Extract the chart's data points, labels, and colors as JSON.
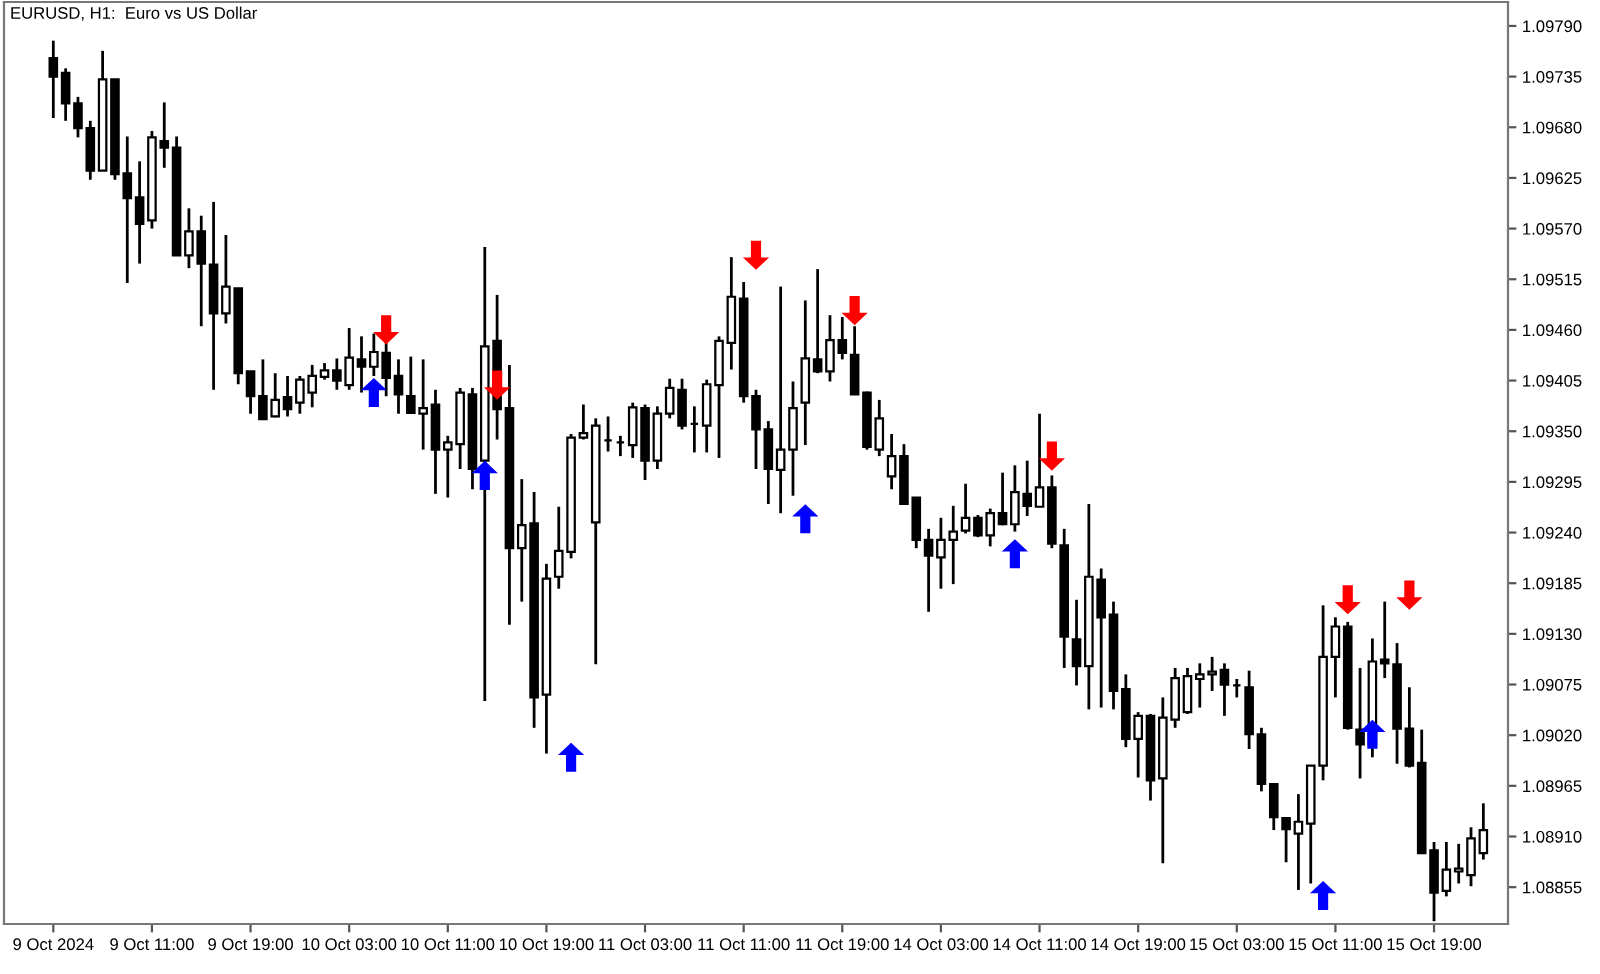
{
  "chart_data": {
    "type": "candlestick",
    "title": "EURUSD, H1:  Euro vs US Dollar",
    "categories": [
      "9 Oct 2024",
      null,
      null,
      null,
      null,
      null,
      null,
      null,
      "9 Oct 11:00",
      null,
      null,
      null,
      null,
      null,
      null,
      null,
      "9 Oct 19:00",
      null,
      null,
      null,
      null,
      null,
      null,
      null,
      "10 Oct 03:00",
      null,
      null,
      null,
      null,
      null,
      null,
      null,
      "10 Oct 11:00",
      null,
      null,
      null,
      null,
      null,
      null,
      null,
      "10 Oct 19:00",
      null,
      null,
      null,
      null,
      null,
      null,
      null,
      "11 Oct 03:00",
      null,
      null,
      null,
      null,
      null,
      null,
      null,
      "11 Oct 11:00",
      null,
      null,
      null,
      null,
      null,
      null,
      null,
      "11 Oct 19:00",
      null,
      null,
      null,
      null,
      null,
      null,
      null,
      "14 Oct 03:00",
      null,
      null,
      null,
      null,
      null,
      null,
      null,
      "14 Oct 11:00",
      null,
      null,
      null,
      null,
      null,
      null,
      null,
      "14 Oct 19:00",
      null,
      null,
      null,
      null,
      null,
      null,
      null,
      "15 Oct 03:00",
      null,
      null,
      null,
      null,
      null,
      null,
      null,
      "15 Oct 11:00",
      null,
      null,
      null,
      null,
      null,
      null,
      null,
      "15 Oct 19:00",
      null,
      null,
      null,
      null
    ],
    "ohlc": [
      [
        1.09755,
        1.09774,
        1.0969,
        1.09735
      ],
      [
        1.09739,
        1.09744,
        1.09687,
        1.09706
      ],
      [
        1.09706,
        1.09713,
        1.09669,
        1.09679
      ],
      [
        1.09679,
        1.09687,
        1.09623,
        1.09633
      ],
      [
        1.09633,
        1.09763,
        1.09633,
        1.09732
      ],
      [
        1.09732,
        1.09732,
        1.09623,
        1.09629
      ],
      [
        1.0963,
        1.0967,
        1.09511,
        1.09603
      ],
      [
        1.09604,
        1.09643,
        1.09532,
        1.09575
      ],
      [
        1.09579,
        1.09676,
        1.0957,
        1.09669
      ],
      [
        1.09665,
        1.09707,
        1.09636,
        1.09658
      ],
      [
        1.09658,
        1.0967,
        1.09541,
        1.09541
      ],
      [
        1.09541,
        1.09592,
        1.09527,
        1.09567
      ],
      [
        1.09567,
        1.09584,
        1.09464,
        1.09532
      ],
      [
        1.09531,
        1.09599,
        1.09395,
        1.09478
      ],
      [
        1.09478,
        1.09563,
        1.09467,
        1.09507
      ],
      [
        1.09505,
        1.09505,
        1.09401,
        1.09413
      ],
      [
        1.09415,
        1.09415,
        1.09369,
        1.09388
      ],
      [
        1.09388,
        1.09428,
        1.09363,
        1.09363
      ],
      [
        1.09366,
        1.09413,
        1.09365,
        1.09384
      ],
      [
        1.09387,
        1.0941,
        1.09366,
        1.09374
      ],
      [
        1.09381,
        1.0941,
        1.09369,
        1.09406
      ],
      [
        1.09392,
        1.09422,
        1.09376,
        1.0941
      ],
      [
        1.09409,
        1.09424,
        1.09406,
        1.09416
      ],
      [
        1.09416,
        1.09429,
        1.09395,
        1.09405
      ],
      [
        1.094,
        1.09462,
        1.09395,
        1.0943
      ],
      [
        1.09428,
        1.09453,
        1.09392,
        1.0942
      ],
      [
        1.0942,
        1.09456,
        1.0941,
        1.09436
      ],
      [
        1.09435,
        1.09446,
        1.09388,
        1.09408
      ],
      [
        1.0941,
        1.09428,
        1.09369,
        1.0939
      ],
      [
        1.09388,
        1.09431,
        1.09369,
        1.0937
      ],
      [
        1.09369,
        1.09428,
        1.0933,
        1.09375
      ],
      [
        1.09379,
        1.09395,
        1.09282,
        1.0933
      ],
      [
        1.0933,
        1.09345,
        1.09278,
        1.09338
      ],
      [
        1.09336,
        1.09397,
        1.09309,
        1.09392
      ],
      [
        1.0939,
        1.09397,
        1.09287,
        1.09309
      ],
      [
        1.09318,
        1.0955,
        1.09057,
        1.09442
      ],
      [
        1.09448,
        1.09498,
        1.09341,
        1.09374
      ],
      [
        1.09375,
        1.09422,
        1.0914,
        1.09223
      ],
      [
        1.09223,
        1.09298,
        1.09165,
        1.09248
      ],
      [
        1.0925,
        1.09284,
        1.09028,
        1.09061
      ],
      [
        1.09064,
        1.09206,
        1.09,
        1.0919
      ],
      [
        1.09192,
        1.09268,
        1.09179,
        1.0922
      ],
      [
        1.09219,
        1.09347,
        1.09212,
        1.09343
      ],
      [
        1.09343,
        1.09379,
        1.09341,
        1.09348
      ],
      [
        1.09251,
        1.09364,
        1.09097,
        1.09356
      ],
      [
        1.0934,
        1.09366,
        1.09328,
        1.0934
      ],
      [
        1.09338,
        1.09345,
        1.09323,
        1.09338
      ],
      [
        1.09335,
        1.09381,
        1.09321,
        1.09376
      ],
      [
        1.09375,
        1.09379,
        1.09297,
        1.09318
      ],
      [
        1.09318,
        1.09377,
        1.09309,
        1.09369
      ],
      [
        1.09369,
        1.09407,
        1.09364,
        1.09397
      ],
      [
        1.09395,
        1.09407,
        1.09352,
        1.09356
      ],
      [
        1.09358,
        1.09377,
        1.09327,
        1.09358
      ],
      [
        1.09356,
        1.09406,
        1.09327,
        1.09401
      ],
      [
        1.094,
        1.09453,
        1.09321,
        1.09448
      ],
      [
        1.09446,
        1.09539,
        1.09417,
        1.09496
      ],
      [
        1.09494,
        1.09512,
        1.09381,
        1.09388
      ],
      [
        1.09388,
        1.09395,
        1.09309,
        1.09352
      ],
      [
        1.09352,
        1.09361,
        1.09271,
        1.09309
      ],
      [
        1.09308,
        1.09507,
        1.09261,
        1.0933
      ],
      [
        1.0933,
        1.09404,
        1.0928,
        1.09375
      ],
      [
        1.09381,
        1.09492,
        1.09335,
        1.09429
      ],
      [
        1.09428,
        1.09526,
        1.09413,
        1.09415
      ],
      [
        1.09415,
        1.09476,
        1.09404,
        1.09449
      ],
      [
        1.09449,
        1.09474,
        1.09428,
        1.09435
      ],
      [
        1.09433,
        1.09464,
        1.0939,
        1.0939
      ],
      [
        1.09392,
        1.09393,
        1.0933,
        1.09333
      ],
      [
        1.0933,
        1.09384,
        1.09323,
        1.09364
      ],
      [
        1.09301,
        1.09347,
        1.09287,
        1.09323
      ],
      [
        1.09323,
        1.09336,
        1.09271,
        1.09271
      ],
      [
        1.09278,
        1.09278,
        1.09223,
        1.09232
      ],
      [
        1.09232,
        1.09244,
        1.09154,
        1.09215
      ],
      [
        1.09213,
        1.09256,
        1.09179,
        1.09232
      ],
      [
        1.09232,
        1.09269,
        1.09184,
        1.09241
      ],
      [
        1.09242,
        1.09293,
        1.09239,
        1.09256
      ],
      [
        1.09256,
        1.09259,
        1.09235,
        1.09237
      ],
      [
        1.09237,
        1.09266,
        1.09225,
        1.09261
      ],
      [
        1.09261,
        1.09305,
        1.09248,
        1.09249
      ],
      [
        1.09249,
        1.09313,
        1.09241,
        1.09284
      ],
      [
        1.09282,
        1.09318,
        1.09258,
        1.09269
      ],
      [
        1.09268,
        1.09369,
        1.09268,
        1.09289
      ],
      [
        1.09289,
        1.09302,
        1.09223,
        1.09228
      ],
      [
        1.09226,
        1.09244,
        1.09093,
        1.09127
      ],
      [
        1.09124,
        1.09167,
        1.09074,
        1.09095
      ],
      [
        1.09095,
        1.09271,
        1.09048,
        1.09192
      ],
      [
        1.09189,
        1.09201,
        1.0905,
        1.09148
      ],
      [
        1.09151,
        1.09165,
        1.09048,
        1.09068
      ],
      [
        1.0907,
        1.09086,
        1.09007,
        1.09016
      ],
      [
        1.09016,
        1.09045,
        1.08974,
        1.09041
      ],
      [
        1.09041,
        1.09043,
        1.08949,
        1.08971
      ],
      [
        1.08973,
        1.09061,
        1.08881,
        1.09039
      ],
      [
        1.09037,
        1.09093,
        1.09028,
        1.09082
      ],
      [
        1.09045,
        1.09093,
        1.09043,
        1.09084
      ],
      [
        1.09081,
        1.09098,
        1.0905,
        1.09086
      ],
      [
        1.09086,
        1.09105,
        1.09068,
        1.09089
      ],
      [
        1.09091,
        1.09098,
        1.09041,
        1.09075
      ],
      [
        1.09074,
        1.09081,
        1.09061,
        1.09074
      ],
      [
        1.09072,
        1.0909,
        1.09005,
        1.09021
      ],
      [
        1.09021,
        1.09028,
        1.08959,
        1.08967
      ],
      [
        1.08967,
        1.08967,
        1.08917,
        1.08931
      ],
      [
        1.0893,
        1.08931,
        1.08882,
        1.08918
      ],
      [
        1.08913,
        1.08956,
        1.08852,
        1.08926
      ],
      [
        1.08924,
        1.08987,
        1.08859,
        1.08987
      ],
      [
        1.08987,
        1.09161,
        1.08971,
        1.09105
      ],
      [
        1.09105,
        1.09148,
        1.09061,
        1.09138
      ],
      [
        1.09138,
        1.09143,
        1.09026,
        1.09028
      ],
      [
        1.09026,
        1.09093,
        1.08973,
        1.0901
      ],
      [
        1.0901,
        1.09125,
        1.08996,
        1.091
      ],
      [
        1.09102,
        1.09165,
        1.09082,
        1.09098
      ],
      [
        1.09097,
        1.0912,
        1.08989,
        1.09027
      ],
      [
        1.09027,
        1.09072,
        1.08985,
        1.08987
      ],
      [
        1.0899,
        1.09026,
        1.08892,
        1.08892
      ],
      [
        1.08895,
        1.08904,
        1.08818,
        1.08849
      ],
      [
        1.08851,
        1.08904,
        1.08845,
        1.08874
      ],
      [
        1.08872,
        1.08902,
        1.08859,
        1.08875
      ],
      [
        1.08868,
        1.0892,
        1.08856,
        1.08908
      ],
      [
        1.08892,
        1.08946,
        1.08885,
        1.08917
      ]
    ],
    "series": [
      {
        "type": "scatter",
        "color": "#ff0000",
        "values": [
          null,
          null,
          null,
          null,
          null,
          null,
          null,
          null,
          null,
          null,
          null,
          null,
          null,
          null,
          null,
          null,
          null,
          null,
          null,
          null,
          null,
          null,
          null,
          null,
          null,
          null,
          null,
          1.0946,
          null,
          null,
          null,
          null,
          null,
          null,
          null,
          null,
          1.094,
          null,
          null,
          null,
          null,
          null,
          null,
          null,
          null,
          null,
          null,
          null,
          null,
          null,
          null,
          null,
          null,
          null,
          null,
          null,
          null,
          1.09541,
          null,
          null,
          null,
          null,
          null,
          null,
          null,
          1.09481,
          null,
          null,
          null,
          null,
          null,
          null,
          null,
          null,
          null,
          null,
          null,
          null,
          null,
          null,
          null,
          1.09323,
          null,
          null,
          null,
          null,
          null,
          null,
          null,
          null,
          null,
          null,
          null,
          null,
          null,
          null,
          null,
          null,
          null,
          null,
          null,
          null,
          null,
          null,
          null,
          1.09167,
          null,
          null,
          null,
          null,
          1.09172,
          null,
          null,
          null,
          null,
          null,
          null
        ]
      },
      {
        "type": "scatter",
        "color": "#0000ff",
        "values": [
          null,
          null,
          null,
          null,
          null,
          null,
          null,
          null,
          null,
          null,
          null,
          null,
          null,
          null,
          null,
          null,
          null,
          null,
          null,
          null,
          null,
          null,
          null,
          null,
          null,
          null,
          1.09392,
          null,
          null,
          null,
          null,
          null,
          null,
          null,
          null,
          1.09302,
          null,
          null,
          null,
          null,
          null,
          null,
          1.08996,
          null,
          null,
          null,
          null,
          null,
          null,
          null,
          null,
          null,
          null,
          null,
          null,
          null,
          null,
          null,
          null,
          null,
          null,
          1.09255,
          null,
          null,
          null,
          null,
          null,
          null,
          null,
          null,
          null,
          null,
          null,
          null,
          null,
          null,
          null,
          null,
          1.09217,
          null,
          null,
          null,
          null,
          null,
          null,
          null,
          null,
          null,
          null,
          null,
          null,
          null,
          null,
          null,
          null,
          null,
          null,
          null,
          null,
          null,
          null,
          null,
          null,
          1.08846,
          null,
          null,
          null,
          1.09021,
          null,
          null,
          null,
          null,
          null,
          null,
          null,
          null,
          null
        ]
      }
    ],
    "ylim": [
      1.08815,
      1.09816
    ],
    "yticks": [
      {
        "value": 1.08855,
        "label": "1.08855"
      },
      {
        "value": 1.0891,
        "label": "1.08910"
      },
      {
        "value": 1.08965,
        "label": "1.08965"
      },
      {
        "value": 1.0902,
        "label": "1.09020"
      },
      {
        "value": 1.09075,
        "label": "1.09075"
      },
      {
        "value": 1.0913,
        "label": "1.09130"
      },
      {
        "value": 1.09185,
        "label": "1.09185"
      },
      {
        "value": 1.0924,
        "label": "1.09240"
      },
      {
        "value": 1.09295,
        "label": "1.09295"
      },
      {
        "value": 1.0935,
        "label": "1.09350"
      },
      {
        "value": 1.09405,
        "label": "1.09405"
      },
      {
        "value": 1.0946,
        "label": "1.09460"
      },
      {
        "value": 1.09515,
        "label": "1.09515"
      },
      {
        "value": 1.0957,
        "label": "1.09570"
      },
      {
        "value": 1.09625,
        "label": "1.09625"
      },
      {
        "value": 1.0968,
        "label": "1.09680"
      },
      {
        "value": 1.09735,
        "label": "1.09735"
      },
      {
        "value": 1.0979,
        "label": "1.09790"
      }
    ],
    "grid": false,
    "legend": false
  }
}
